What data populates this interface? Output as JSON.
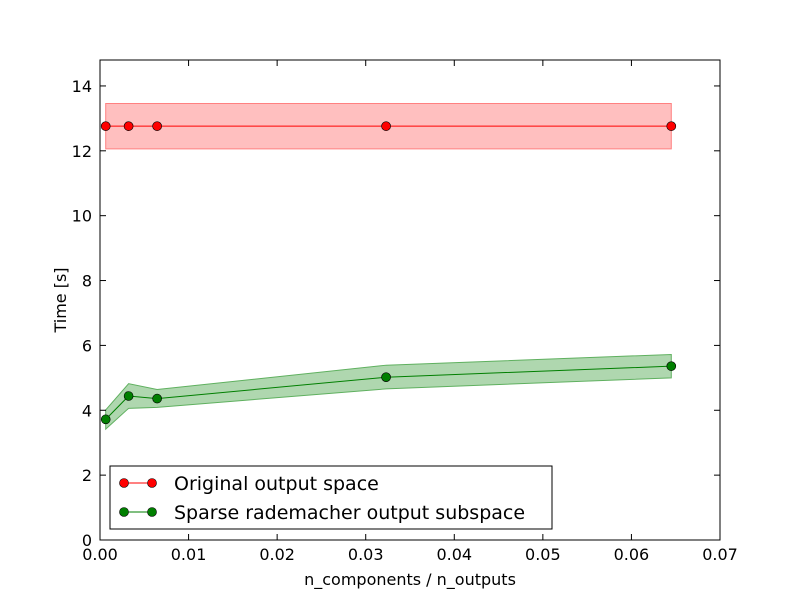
{
  "chart_data": {
    "type": "line",
    "xlabel": "n_components / n_outputs",
    "ylabel": "Time [s]",
    "xlim": [
      0.0,
      0.07
    ],
    "ylim": [
      0,
      14.8
    ],
    "xticks": [
      "0.00",
      "0.01",
      "0.02",
      "0.03",
      "0.04",
      "0.05",
      "0.06",
      "0.07"
    ],
    "yticks": [
      "0",
      "2",
      "4",
      "6",
      "8",
      "10",
      "12",
      "14"
    ],
    "xtick_values": [
      0.0,
      0.01,
      0.02,
      0.03,
      0.04,
      0.05,
      0.06,
      0.07
    ],
    "ytick_values": [
      0,
      2,
      4,
      6,
      8,
      10,
      12,
      14
    ],
    "x": [
      0.000645,
      0.00323,
      0.00645,
      0.0323,
      0.0645
    ],
    "legend_position": "lower-left",
    "series": [
      {
        "name": "Original output space",
        "color": "#ff0000",
        "fill_color": "#ff8080",
        "values": [
          12.76,
          12.76,
          12.76,
          12.76,
          12.76
        ],
        "lower": [
          12.06,
          12.06,
          12.06,
          12.06,
          12.06
        ],
        "upper": [
          13.46,
          13.46,
          13.46,
          13.46,
          13.46
        ]
      },
      {
        "name": "Sparse rademacher output subspace",
        "color": "#007f00",
        "fill_color": "#5fb05f",
        "values": [
          3.72,
          4.44,
          4.36,
          5.02,
          5.36
        ],
        "lower": [
          3.42,
          4.06,
          4.09,
          4.66,
          5.0
        ],
        "upper": [
          4.01,
          4.82,
          4.64,
          5.39,
          5.72
        ]
      }
    ]
  }
}
